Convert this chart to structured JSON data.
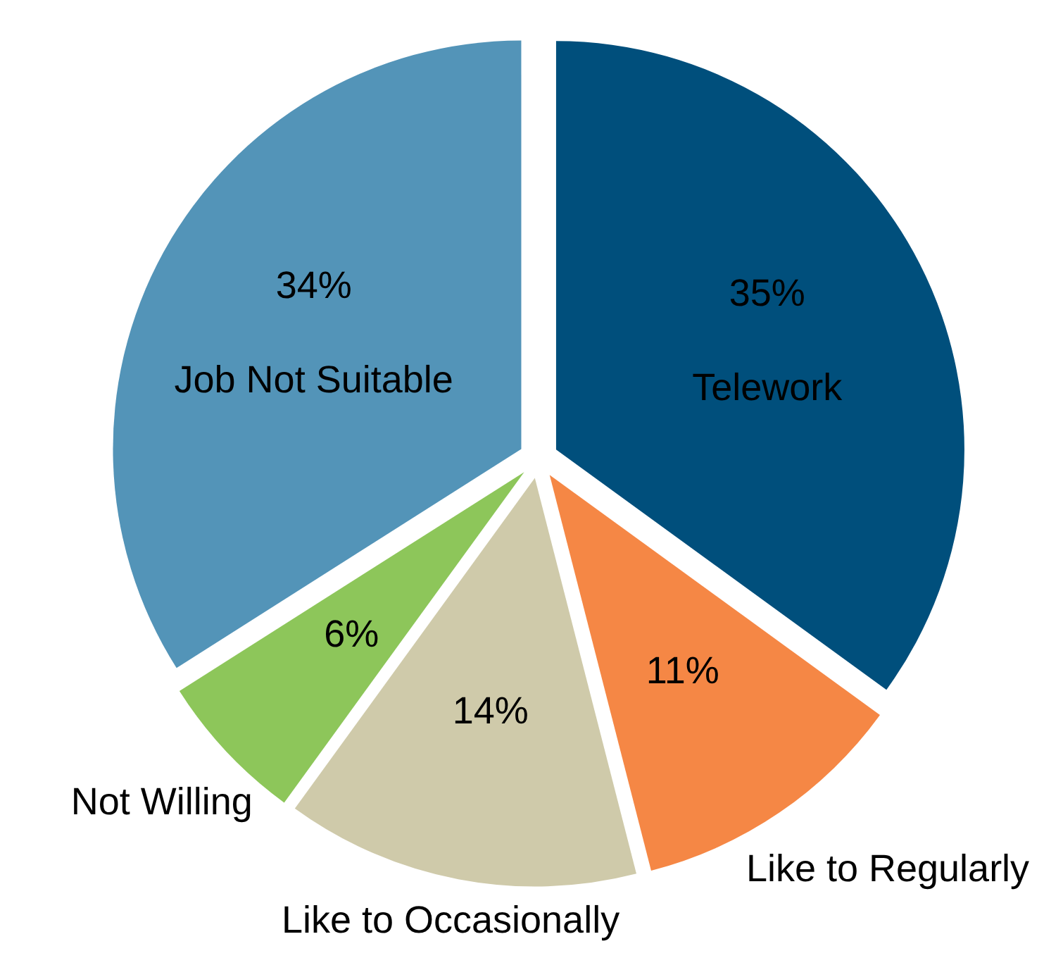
{
  "chart_data": {
    "type": "pie",
    "categories": [
      "Telework",
      "Like to Regularly",
      "Like to Occasionally",
      "Not Willing",
      "Job Not Suitable"
    ],
    "values": [
      35,
      11,
      14,
      6,
      34
    ],
    "colors": [
      "#004f7c",
      "#f58745",
      "#cfcaaa",
      "#8dc65a",
      "#5394b8"
    ],
    "value_labels": [
      "35%",
      "11%",
      "14%",
      "6%",
      "34%"
    ],
    "legend": false
  }
}
